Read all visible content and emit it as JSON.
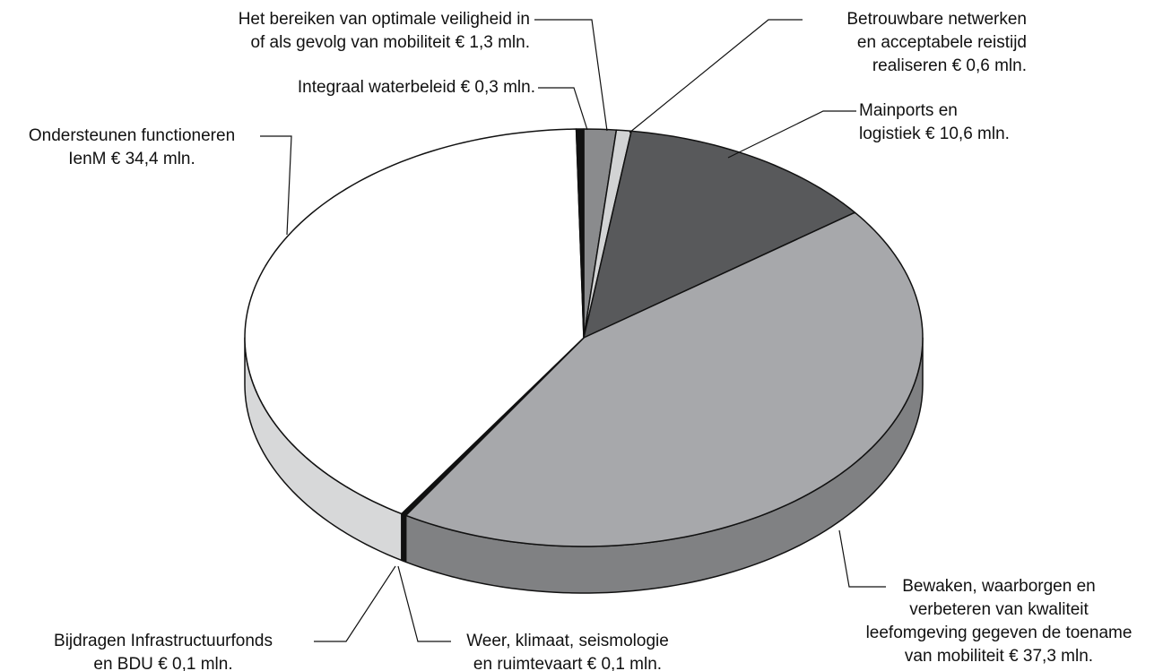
{
  "chart_data": {
    "type": "pie3d",
    "categories": [
      [
        "Het bereiken van optimale veiligheid in",
        "of als gevolg van mobiliteit"
      ],
      [
        "Betrouwbare netwerken",
        "en acceptabele reistijd",
        "realiseren"
      ],
      [
        "Mainports en",
        "logistiek"
      ],
      [
        "Bewaken, waarborgen en",
        "verbeteren van kwaliteit",
        "leefomgeving gegeven de toename",
        "van mobiliteit"
      ],
      [
        "Weer, klimaat, seismologie",
        "en ruimtevaart"
      ],
      [
        "Bijdragen Infrastructuurfonds",
        "en BDU"
      ],
      [
        "Ondersteunen functioneren",
        "IenM"
      ],
      [
        "Integraal waterbeleid"
      ]
    ],
    "values": [
      1.3,
      0.6,
      10.6,
      37.3,
      0.1,
      0.1,
      34.4,
      0.3
    ],
    "value_labels": [
      "€ 1,3 mln.",
      "€ 0,6 mln.",
      "€ 10,6 mln.",
      "€ 37,3 mln.",
      "€ 0,1 mln.",
      "€ 0,1 mln.",
      "€ 34,4 mln.",
      "€ 0,3 mln."
    ],
    "colors": [
      "#8a8b8d",
      "#d2d3d4",
      "#58595b",
      "#a7a8ab",
      "#111111",
      "#111111",
      "#ffffff",
      "#111111"
    ],
    "side_colors": [
      "#6f7072",
      "#b5b6b8",
      "#3f4042",
      "#808183",
      "#111111",
      "#111111",
      "#d7d8d9",
      "#111111"
    ]
  }
}
